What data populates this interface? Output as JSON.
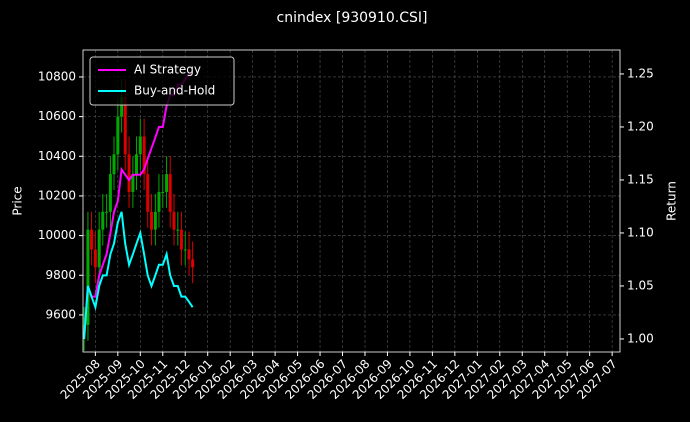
{
  "chart_data": {
    "type": "candlestick",
    "title": "cnindex [930910.CSI]",
    "ylabel": "Price",
    "y2label": "Return",
    "x": [
      -0.5,
      -0.33,
      -0.17,
      0,
      0.17,
      0.33,
      0.5,
      0.67,
      0.83,
      1,
      1.17,
      1.33,
      1.5,
      1.67,
      1.83,
      2,
      2.17,
      2.33,
      2.5,
      2.67,
      2.83,
      3,
      3.17,
      3.33,
      3.5,
      3.67,
      3.83,
      4,
      4.17,
      4.33
    ],
    "open": [
      9500,
      9550,
      10030,
      9930,
      9840,
      10030,
      10120,
      10120,
      10310,
      10410,
      10600,
      10700,
      10410,
      10220,
      10310,
      10410,
      10500,
      10310,
      10120,
      10030,
      10120,
      10220,
      10220,
      10310,
      10120,
      10030,
      10030,
      9930,
      9930,
      9880
    ],
    "high": [
      9640,
      10120,
      10120,
      10020,
      10120,
      10210,
      10210,
      10400,
      10500,
      10690,
      10790,
      10790,
      10500,
      10400,
      10500,
      10590,
      10590,
      10400,
      10210,
      10210,
      10310,
      10310,
      10400,
      10400,
      10210,
      10120,
      10120,
      10020,
      10020,
      9970
    ],
    "low": [
      9420,
      9470,
      9850,
      9760,
      9760,
      9950,
      10040,
      10040,
      10230,
      10330,
      10520,
      10330,
      10140,
      10140,
      10230,
      10330,
      10230,
      10040,
      9950,
      9950,
      10040,
      10140,
      10140,
      10040,
      9950,
      9950,
      9850,
      9850,
      9800,
      9760
    ],
    "close": [
      9550,
      10030,
      9930,
      9840,
      10030,
      10120,
      10120,
      10310,
      10410,
      10600,
      10700,
      10410,
      10220,
      10310,
      10410,
      10500,
      10310,
      10120,
      10030,
      10120,
      10220,
      10220,
      10310,
      10120,
      10030,
      10030,
      9930,
      9930,
      9880,
      9840
    ],
    "up_color": "#00aa00",
    "down_color": "#dd0000",
    "series": [
      {
        "name": "AI Strategy",
        "color": "#ff00ff",
        "axis": "y2",
        "values": [
          1.0,
          1.05,
          1.04,
          1.04,
          1.06,
          1.07,
          1.08,
          1.1,
          1.12,
          1.13,
          1.16,
          1.155,
          1.15,
          1.155,
          1.155,
          1.155,
          1.16,
          1.17,
          1.18,
          1.19,
          1.2,
          1.2,
          1.22,
          1.23,
          1.23,
          1.24,
          1.24,
          1.245,
          1.25,
          1.25
        ]
      },
      {
        "name": "Buy-and-Hold",
        "color": "#00ffff",
        "axis": "y2",
        "values": [
          1.0,
          1.05,
          1.04,
          1.03,
          1.05,
          1.06,
          1.06,
          1.08,
          1.09,
          1.11,
          1.12,
          1.09,
          1.07,
          1.08,
          1.09,
          1.1,
          1.08,
          1.06,
          1.05,
          1.06,
          1.07,
          1.07,
          1.08,
          1.06,
          1.05,
          1.05,
          1.04,
          1.04,
          1.035,
          1.03
        ]
      }
    ],
    "xlim": [
      -0.55,
      23.35
    ],
    "xticks": [
      {
        "value": 0,
        "label": "2025-08"
      },
      {
        "value": 1,
        "label": "2025-09"
      },
      {
        "value": 2,
        "label": "2025-10"
      },
      {
        "value": 3,
        "label": "2025-11"
      },
      {
        "value": 4,
        "label": "2025-12"
      },
      {
        "value": 5,
        "label": "2026-01"
      },
      {
        "value": 6,
        "label": "2026-02"
      },
      {
        "value": 7,
        "label": "2026-03"
      },
      {
        "value": 8,
        "label": "2026-04"
      },
      {
        "value": 9,
        "label": "2026-05"
      },
      {
        "value": 10,
        "label": "2026-06"
      },
      {
        "value": 11,
        "label": "2026-07"
      },
      {
        "value": 12,
        "label": "2026-08"
      },
      {
        "value": 13,
        "label": "2026-09"
      },
      {
        "value": 14,
        "label": "2026-10"
      },
      {
        "value": 15,
        "label": "2026-11"
      },
      {
        "value": 16,
        "label": "2026-12"
      },
      {
        "value": 17,
        "label": "2027-01"
      },
      {
        "value": 18,
        "label": "2027-02"
      },
      {
        "value": 19,
        "label": "2027-03"
      },
      {
        "value": 20,
        "label": "2027-04"
      },
      {
        "value": 21,
        "label": "2027-05"
      },
      {
        "value": 22,
        "label": "2027-06"
      },
      {
        "value": 23,
        "label": "2027-07"
      }
    ],
    "ylim": [
      9413,
      10936
    ],
    "yticks": [
      9600,
      9800,
      10000,
      10200,
      10400,
      10600,
      10800
    ],
    "y2lim": [
      0.9877,
      1.2726
    ],
    "y2ticks": [
      {
        "value": 1.0,
        "label": "1.00"
      },
      {
        "value": 1.05,
        "label": "1.05"
      },
      {
        "value": 1.1,
        "label": "1.10"
      },
      {
        "value": 1.15,
        "label": "1.15"
      },
      {
        "value": 1.2,
        "label": "1.20"
      },
      {
        "value": 1.25,
        "label": "1.25"
      }
    ],
    "grid": true,
    "legend": "upper left"
  }
}
